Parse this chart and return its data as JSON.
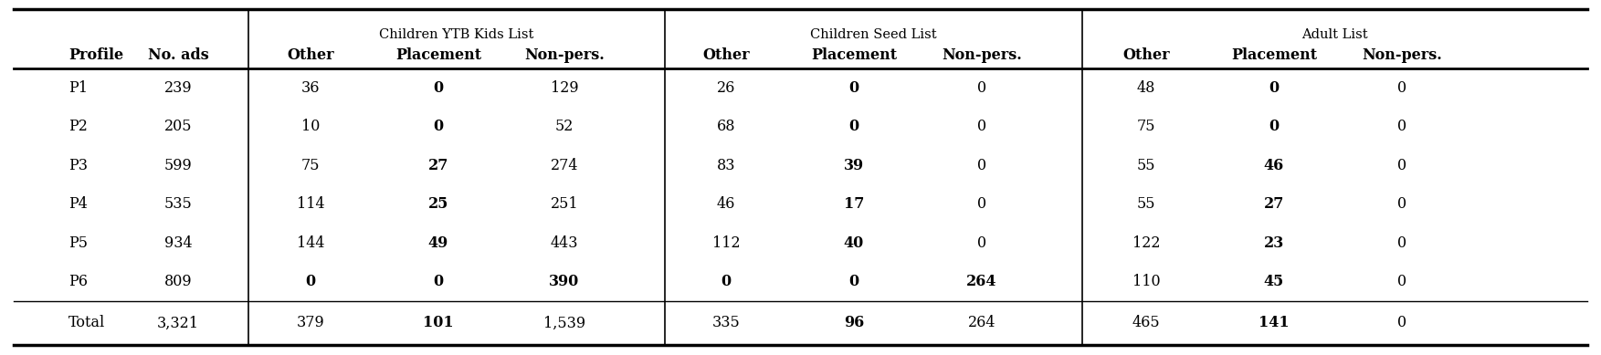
{
  "profiles": [
    "P1",
    "P2",
    "P3",
    "P4",
    "P5",
    "P6",
    "Total"
  ],
  "no_ads": [
    "239",
    "205",
    "599",
    "535",
    "934",
    "809",
    "3,321"
  ],
  "col_data": [
    [
      "36",
      "10",
      "75",
      "114",
      "144",
      "0",
      "379"
    ],
    [
      "0",
      "0",
      "27",
      "25",
      "49",
      "0",
      "101"
    ],
    [
      "129",
      "52",
      "274",
      "251",
      "443",
      "390",
      "1,539"
    ],
    [
      "26",
      "68",
      "83",
      "46",
      "112",
      "0",
      "335"
    ],
    [
      "0",
      "0",
      "39",
      "17",
      "40",
      "0",
      "96"
    ],
    [
      "0",
      "0",
      "0",
      "0",
      "0",
      "264",
      "264"
    ],
    [
      "48",
      "75",
      "55",
      "55",
      "122",
      "110",
      "465"
    ],
    [
      "0",
      "0",
      "46",
      "27",
      "23",
      "45",
      "141"
    ],
    [
      "0",
      "0",
      "0",
      "0",
      "0",
      "0",
      "0"
    ]
  ],
  "bold_data": [
    [
      false,
      false,
      false,
      false,
      false,
      true,
      false
    ],
    [
      true,
      true,
      true,
      true,
      true,
      true,
      true
    ],
    [
      false,
      false,
      false,
      false,
      false,
      true,
      false
    ],
    [
      false,
      false,
      false,
      false,
      false,
      true,
      false
    ],
    [
      true,
      true,
      true,
      true,
      true,
      true,
      true
    ],
    [
      false,
      false,
      false,
      false,
      false,
      true,
      false
    ],
    [
      false,
      false,
      false,
      false,
      false,
      false,
      false
    ],
    [
      true,
      true,
      true,
      true,
      true,
      true,
      true
    ],
    [
      false,
      false,
      false,
      false,
      false,
      false,
      false
    ]
  ],
  "header_group1": "Children YTB Kids List",
  "header_group2": "Children Seed List",
  "header_group3": "Adult List",
  "col_profile": "Profile",
  "col_noads": "No. ads",
  "col_other": "Other",
  "col_placement": "Placement",
  "col_nonpers": "Non-pers.",
  "bg_color": "#ffffff",
  "text_color": "#000000",
  "font_size": 11.5,
  "group_header_font_size": 10.5
}
